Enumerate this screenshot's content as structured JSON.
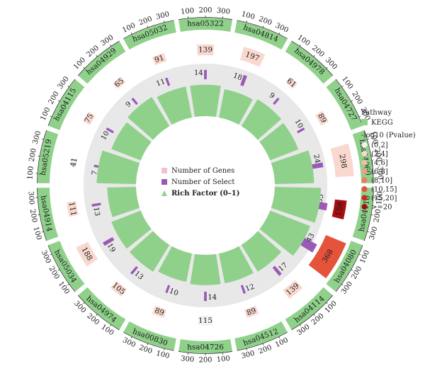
{
  "chart_data": {
    "type": "circular-bar",
    "pathways": [
      {
        "id": "hsa05322",
        "genes": 139,
        "select": 14,
        "pvalue_bin": "(2,4]",
        "rich_factor": 0.6
      },
      {
        "id": "hsa04814",
        "genes": 197,
        "select": 18,
        "pvalue_bin": "(2,4]",
        "rich_factor": 0.55
      },
      {
        "id": "hsa04978",
        "genes": 61,
        "select": 9,
        "pvalue_bin": "(2,4]",
        "rich_factor": 0.6
      },
      {
        "id": "hsa04727",
        "genes": 89,
        "select": 10,
        "pvalue_bin": "(2,4]",
        "rich_factor": 0.58
      },
      {
        "id": "hsa04060",
        "genes": 298,
        "select": 24,
        "pvalue_bin": "(2,4]",
        "rich_factor": 0.75
      },
      {
        "id": "hsa04110",
        "genes": 158,
        "select": 35,
        "pvalue_bin": ">=20",
        "rich_factor": 0.88
      },
      {
        "id": "hsa04080",
        "genes": 368,
        "select": 43,
        "pvalue_bin": "(10,15]",
        "rich_factor": 0.82
      },
      {
        "id": "hsa04114",
        "genes": 139,
        "select": 17,
        "pvalue_bin": "(2,4]",
        "rich_factor": 0.6
      },
      {
        "id": "hsa04512",
        "genes": 89,
        "select": 12,
        "pvalue_bin": "(2,4]",
        "rich_factor": 0.58
      },
      {
        "id": "hsa04726",
        "genes": 115,
        "select": 14,
        "pvalue_bin": "(0,2]",
        "rich_factor": 0.58
      },
      {
        "id": "hsa00830",
        "genes": 89,
        "select": 10,
        "pvalue_bin": "(2,4]",
        "rich_factor": 0.55
      },
      {
        "id": "hsa04974",
        "genes": 105,
        "select": 13,
        "pvalue_bin": "(2,4]",
        "rich_factor": 0.6
      },
      {
        "id": "hsa05034",
        "genes": 188,
        "select": 19,
        "pvalue_bin": "(2,4]",
        "rich_factor": 0.6
      },
      {
        "id": "hsa04914",
        "genes": 111,
        "select": 13,
        "pvalue_bin": "(2,4]",
        "rich_factor": 0.55
      },
      {
        "id": "hsa05219",
        "genes": 41,
        "select": 7,
        "pvalue_bin": "(0,2]",
        "rich_factor": 0.75
      },
      {
        "id": "hsa04115",
        "genes": 75,
        "select": 10,
        "pvalue_bin": "(2,4]",
        "rich_factor": 0.6
      },
      {
        "id": "hsa04929",
        "genes": 65,
        "select": 9,
        "pvalue_bin": "(2,4]",
        "rich_factor": 0.65
      },
      {
        "id": "hsa05032",
        "genes": 91,
        "select": 11,
        "pvalue_bin": "(2,4]",
        "rich_factor": 0.6
      }
    ],
    "outer_ticks": [
      "100",
      "200",
      "300"
    ],
    "center_legend": {
      "genes": "Number of Genes",
      "select": "Number of Select",
      "rich": "Rich Factor (0–1)"
    },
    "side_legend": {
      "pathway_title": "Pathway",
      "pathway_item": "KEGG",
      "pvalue_title": "-log10 (Pvalue)",
      "bins": [
        "(0,2]",
        "(2,4]",
        "(4,6]",
        "(6,8]",
        "(8,10]",
        "(10,15]",
        "(15,20]",
        ">=20"
      ]
    },
    "colors": {
      "kegg": "#8fd18a",
      "rich": "#8fd18a",
      "select": "#9b59b6",
      "ring_bg": "#e8e8e8",
      "bins": [
        "#f2f2f2",
        "#f9d9cf",
        "#f6bca8",
        "#f39c82",
        "#ee7a5d",
        "#e5533b",
        "#cf2a1e",
        "#a60e10"
      ]
    }
  }
}
